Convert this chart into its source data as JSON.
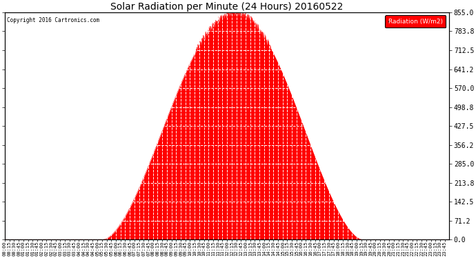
{
  "title": "Solar Radiation per Minute (24 Hours) 20160522",
  "copyright_text": "Copyright 2016 Cartronics.com",
  "legend_label": "Radiation (W/m2)",
  "fill_color": "#FF0000",
  "line_color": "#FF0000",
  "background_color": "#FFFFFF",
  "grid_color": "#BBBBBB",
  "ylim": [
    0.0,
    855.0
  ],
  "yticks": [
    0.0,
    71.2,
    142.5,
    213.8,
    285.0,
    356.2,
    427.5,
    498.8,
    570.0,
    641.2,
    712.5,
    783.8,
    855.0
  ],
  "peak_value": 855.0,
  "sunrise_minute": 318,
  "sunset_minute": 1158,
  "peak_minute": 745,
  "total_minutes": 1440,
  "figwidth": 6.9,
  "figheight": 3.75,
  "dpi": 100
}
